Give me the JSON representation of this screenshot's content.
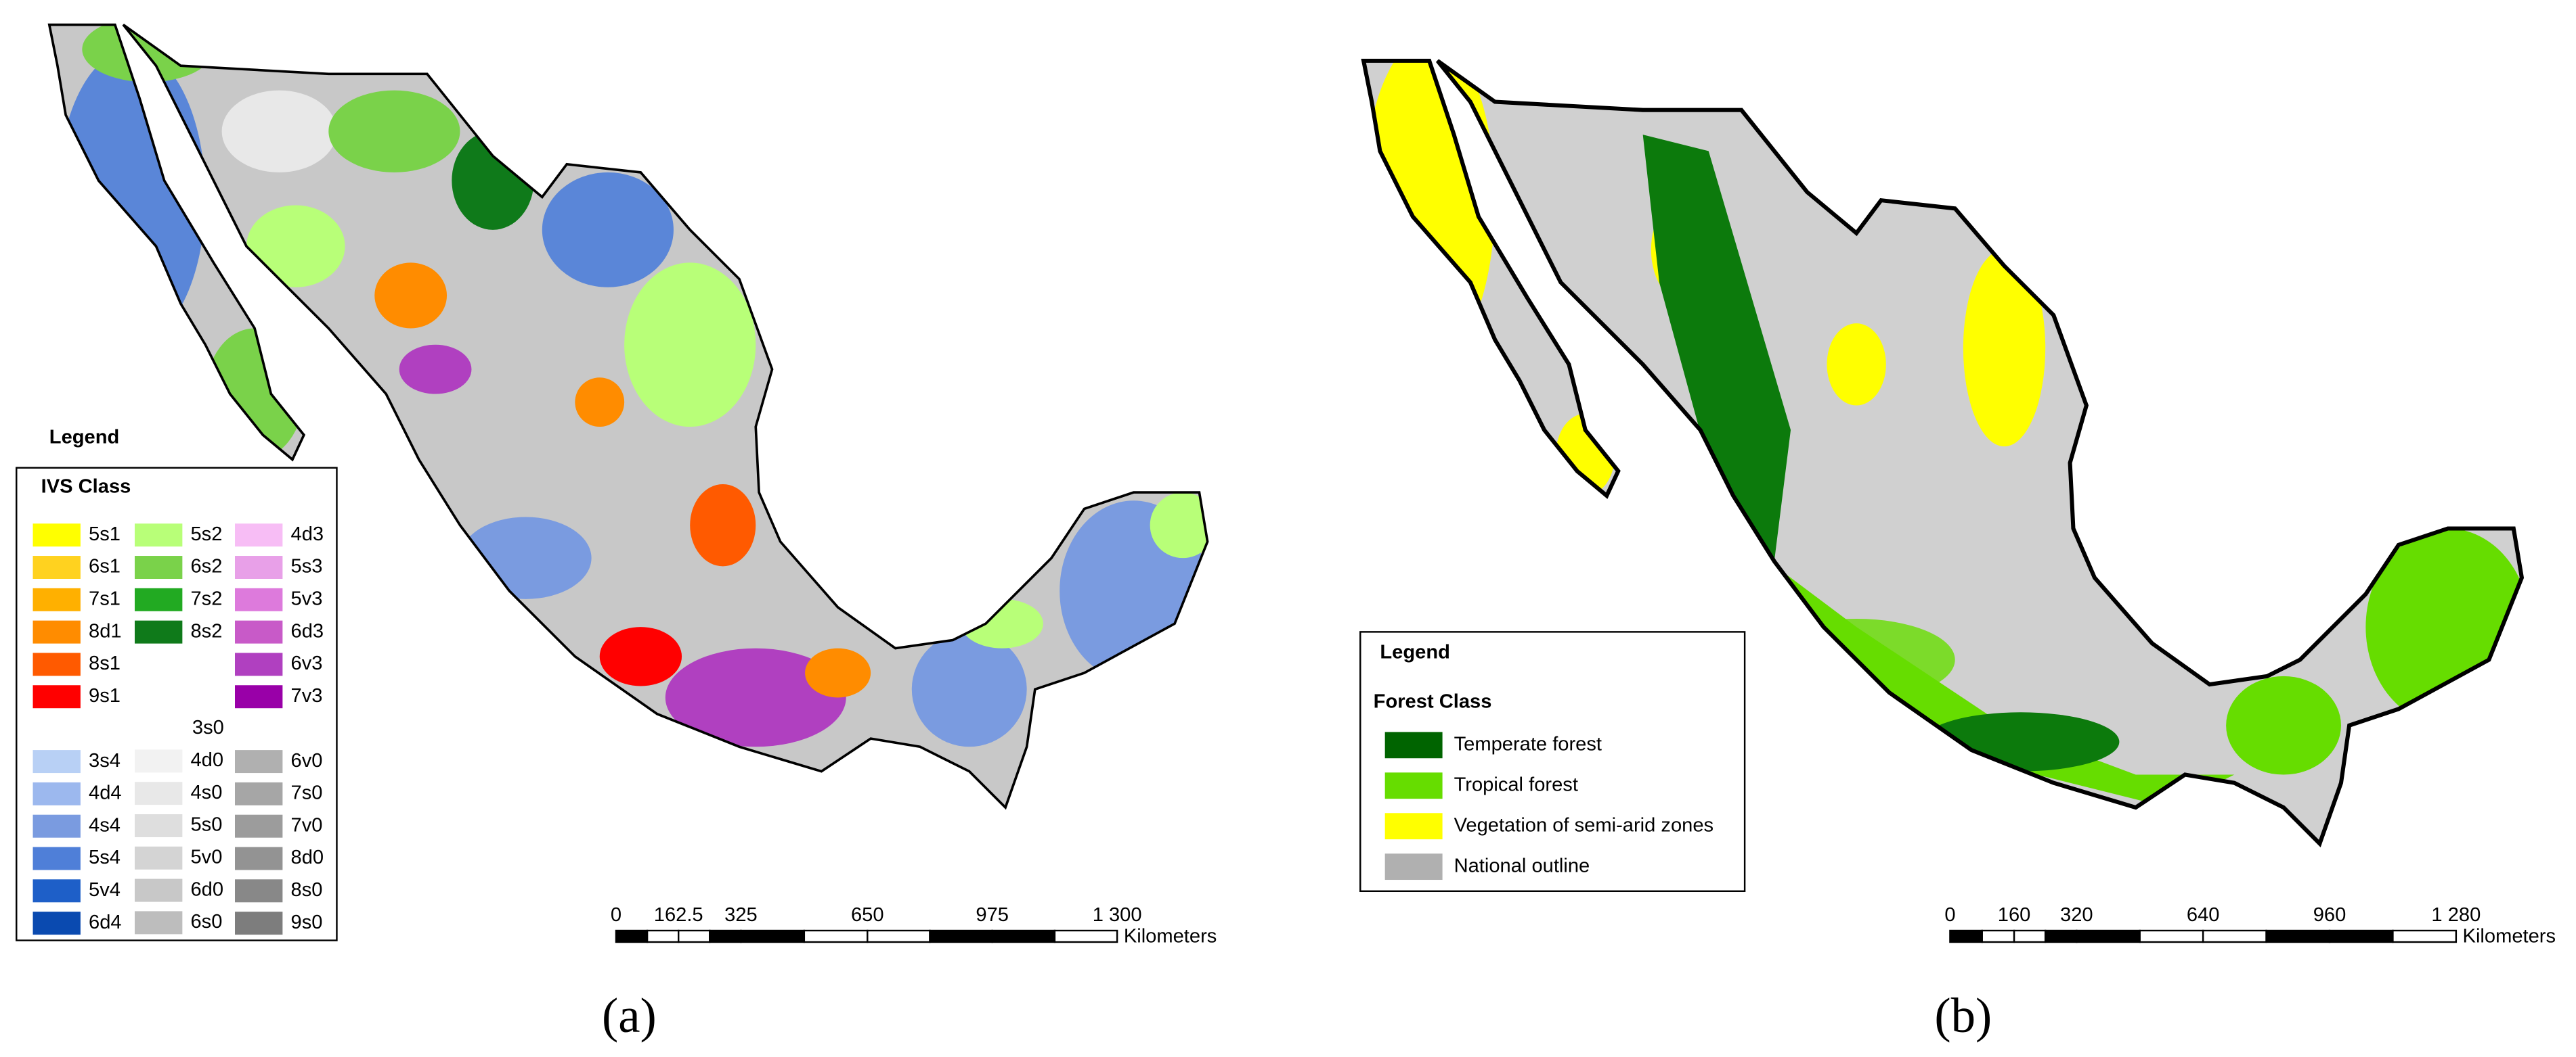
{
  "panel_a": {
    "legend_title": "Legend",
    "class_title": "IVS Class",
    "columns": [
      [
        {
          "label": "5s1",
          "color": "#ffff00"
        },
        {
          "label": "6s1",
          "color": "#ffd21f"
        },
        {
          "label": "7s1",
          "color": "#ffb000"
        },
        {
          "label": "8d1",
          "color": "#ff8c00"
        },
        {
          "label": "8s1",
          "color": "#ff5a00"
        },
        {
          "label": "9s1",
          "color": "#ff0000"
        }
      ],
      [
        {
          "label": "5s2",
          "color": "#b8ff78"
        },
        {
          "label": "6s2",
          "color": "#7ad24a"
        },
        {
          "label": "7s2",
          "color": "#22aa22"
        },
        {
          "label": "8s2",
          "color": "#0f7a1a"
        }
      ],
      [
        {
          "label": "4d3",
          "color": "#f7bdf5"
        },
        {
          "label": "5s3",
          "color": "#e8a0e8"
        },
        {
          "label": "5v3",
          "color": "#dd7adc"
        },
        {
          "label": "6d3",
          "color": "#c85ac8"
        },
        {
          "label": "6v3",
          "color": "#b040c0"
        },
        {
          "label": "7v3",
          "color": "#9900a8"
        }
      ],
      [
        {
          "label": "3s4",
          "color": "#b8d0f5"
        },
        {
          "label": "4d4",
          "color": "#9cb8ee"
        },
        {
          "label": "4s4",
          "color": "#7a9be0"
        },
        {
          "label": "5s4",
          "color": "#4f7fd8"
        },
        {
          "label": "5v4",
          "color": "#1e5fc8"
        },
        {
          "label": "6d4",
          "color": "#0a4ab0"
        }
      ],
      [
        {
          "label": "3s0",
          "color": "#ffffff"
        },
        {
          "label": "4d0",
          "color": "#f2f2f2"
        },
        {
          "label": "4s0",
          "color": "#e8e8e8"
        },
        {
          "label": "5s0",
          "color": "#dedede"
        },
        {
          "label": "5v0",
          "color": "#d4d4d4"
        },
        {
          "label": "6d0",
          "color": "#c8c8c8"
        },
        {
          "label": "6s0",
          "color": "#bdbdbd"
        }
      ],
      [
        {
          "label": "6v0",
          "color": "#b0b0b0"
        },
        {
          "label": "7s0",
          "color": "#a6a6a6"
        },
        {
          "label": "7v0",
          "color": "#9c9c9c"
        },
        {
          "label": "8d0",
          "color": "#939393"
        },
        {
          "label": "8s0",
          "color": "#888888"
        },
        {
          "label": "9s0",
          "color": "#7d7d7d"
        }
      ]
    ],
    "scale_labels": [
      "0",
      "162.5",
      "325",
      "650",
      "975",
      "1 300"
    ],
    "scale_unit": "Kilometers",
    "caption": "(a)"
  },
  "panel_b": {
    "legend_title": "Legend",
    "class_title": "Forest Class",
    "items": [
      {
        "label": "Temperate forest",
        "color": "#006400"
      },
      {
        "label": "Tropical forest",
        "color": "#66dd00"
      },
      {
        "label": "Vegetation of semi-arid zones",
        "color": "#ffff00"
      },
      {
        "label": "National outline",
        "color": "#b0b0b0"
      }
    ],
    "scale_labels": [
      "0",
      "160",
      "320",
      "640",
      "960",
      "1 280"
    ],
    "scale_unit": "Kilometers",
    "caption": "(b)"
  }
}
